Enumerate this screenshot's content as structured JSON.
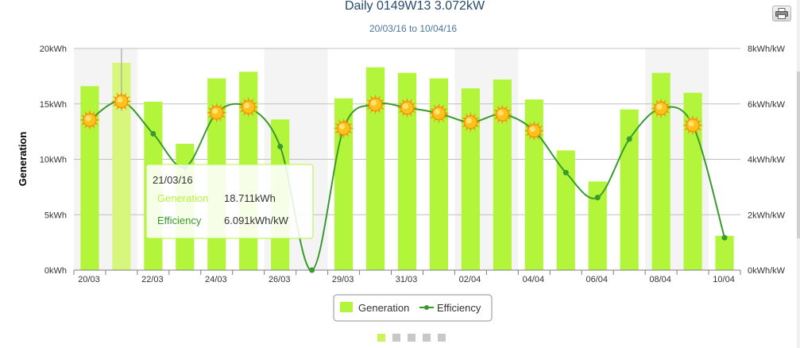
{
  "chart_data": {
    "type": "bar+line",
    "title": "Daily 0149W13 3.072kW",
    "subtitle": "20/03/16 to 10/04/16",
    "ylabel_left": "Generation",
    "ylabel_right": "",
    "left_axis": {
      "unit": "kWh",
      "min": 0,
      "max": 20,
      "ticks": [
        "0kWh",
        "5kWh",
        "10kWh",
        "15kWh",
        "20kWh"
      ]
    },
    "right_axis": {
      "unit": "kWh/kW",
      "min": 0,
      "max": 8,
      "ticks": [
        "0kWh/kW",
        "2kWh/kW",
        "4kWh/kW",
        "6kWh/kW",
        "8kWh/kW"
      ]
    },
    "x_tick_labels": [
      "20/03",
      "22/03",
      "24/03",
      "26/03",
      "29/03",
      "31/03",
      "02/04",
      "04/04",
      "06/04",
      "08/04",
      "10/04"
    ],
    "categories": [
      "20/03",
      "21/03",
      "22/03",
      "23/03",
      "24/03",
      "25/03",
      "26/03",
      "28/03",
      "29/03",
      "30/03",
      "31/03",
      "01/04",
      "02/04",
      "03/04",
      "04/04",
      "05/04",
      "06/04",
      "07/04",
      "08/04",
      "09/04",
      "10/04"
    ],
    "series": [
      {
        "name": "Generation",
        "axis": "left",
        "color": "#b3f53b",
        "values": [
          16.6,
          18.711,
          15.2,
          11.4,
          17.3,
          17.9,
          13.6,
          0,
          15.5,
          18.3,
          17.8,
          17.3,
          16.4,
          17.2,
          15.4,
          10.8,
          8.0,
          14.5,
          17.8,
          16.0,
          3.1
        ]
      },
      {
        "name": "Efficiency",
        "axis": "right",
        "color": "#3a9a2e",
        "values": [
          5.42,
          6.091,
          4.92,
          3.72,
          5.68,
          5.88,
          4.46,
          0.0,
          5.12,
          5.98,
          5.86,
          5.66,
          5.34,
          5.62,
          5.03,
          3.52,
          2.62,
          4.73,
          5.84,
          5.23,
          1.17
        ],
        "sun_markers": [
          true,
          true,
          false,
          false,
          true,
          true,
          false,
          false,
          true,
          true,
          true,
          true,
          true,
          true,
          true,
          false,
          false,
          false,
          true,
          true,
          false
        ]
      }
    ],
    "highlighted_index": 1,
    "grid": "horizontal",
    "legend": "bottom-center",
    "tooltip": {
      "date": "21/03/16",
      "generation_label": "Generation",
      "generation_value": "18.711kWh",
      "efficiency_label": "Efficiency",
      "efficiency_value": "6.091kWh/kW"
    }
  },
  "pager_dots": {
    "count": 5,
    "active": 0,
    "active_color": "#c9f55a",
    "inactive_color": "#c8c8c8"
  },
  "toolbar": {
    "print_icon": "printer-icon"
  }
}
